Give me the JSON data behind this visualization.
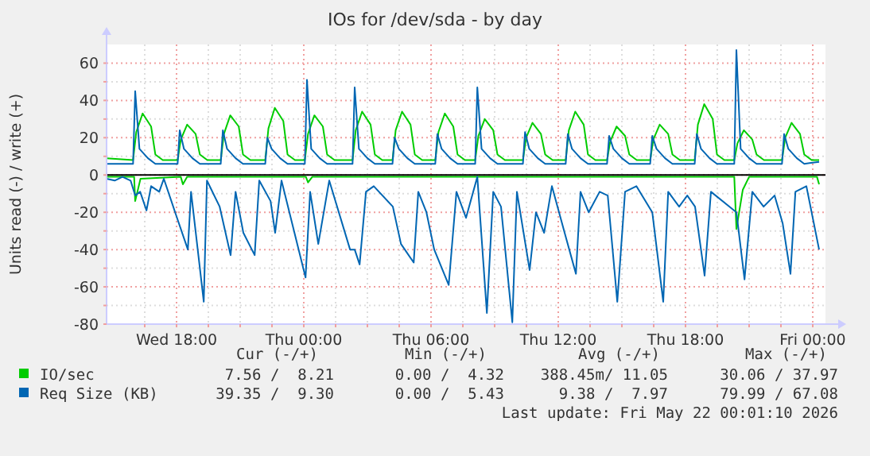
{
  "chart_data": {
    "type": "line",
    "title": "IOs for /dev/sda - by day",
    "ylabel": "Units read (-) / write (+)",
    "xlim": [
      "2026-05-20T14:42",
      "2026-05-22T00:36"
    ],
    "xticks": [
      {
        "value": "2026-05-20T16:30",
        "label": null
      },
      {
        "value": "2026-05-20T18:00",
        "label": "Wed 18:00"
      },
      {
        "value": "2026-05-20T19:30",
        "label": null
      },
      {
        "value": "2026-05-20T21:00",
        "label": null
      },
      {
        "value": "2026-05-20T22:30",
        "label": null
      },
      {
        "value": "2026-05-21T00:00",
        "label": "Thu 00:00"
      },
      {
        "value": "2026-05-21T01:30",
        "label": null
      },
      {
        "value": "2026-05-21T03:00",
        "label": null
      },
      {
        "value": "2026-05-21T04:30",
        "label": null
      },
      {
        "value": "2026-05-21T06:00",
        "label": "Thu 06:00"
      },
      {
        "value": "2026-05-21T07:30",
        "label": null
      },
      {
        "value": "2026-05-21T09:00",
        "label": null
      },
      {
        "value": "2026-05-21T10:30",
        "label": null
      },
      {
        "value": "2026-05-21T12:00",
        "label": "Thu 12:00"
      },
      {
        "value": "2026-05-21T13:30",
        "label": null
      },
      {
        "value": "2026-05-21T15:00",
        "label": null
      },
      {
        "value": "2026-05-21T16:30",
        "label": null
      },
      {
        "value": "2026-05-21T18:00",
        "label": "Thu 18:00"
      },
      {
        "value": "2026-05-21T19:30",
        "label": null
      },
      {
        "value": "2026-05-21T21:00",
        "label": null
      },
      {
        "value": "2026-05-21T22:30",
        "label": null
      },
      {
        "value": "2026-05-22T00:00",
        "label": "Fri 00:00"
      }
    ],
    "ylim": [
      -80,
      70
    ],
    "yticks": [
      -80,
      {
        "value": -70,
        "label": null
      },
      -60,
      {
        "value": -50,
        "label": null
      },
      -40,
      {
        "value": -30,
        "label": null
      },
      -20,
      {
        "value": -10,
        "label": null
      },
      0,
      {
        "value": 10,
        "label": null
      },
      20,
      {
        "value": 30,
        "label": null
      },
      40,
      {
        "value": 50,
        "label": null
      },
      60
    ],
    "grid": true,
    "legend": "bottom",
    "line_style": "solid",
    "marker": "none",
    "ref_lines": [
      {
        "axis": "y",
        "value": 0,
        "color": "#000000"
      }
    ],
    "series": [
      {
        "color": "#00cc00",
        "x": [
          "2026-05-20T14:42",
          "2026-05-20T16:00",
          "2026-05-20T16:03",
          "2026-05-20T16:18",
          "2026-05-20T18:12",
          "2026-05-20T18:18",
          "2026-05-20T18:30",
          "2026-05-21T00:06",
          "2026-05-21T00:12",
          "2026-05-21T00:24",
          "2026-05-21T20:18",
          "2026-05-21T20:24",
          "2026-05-21T20:42",
          "2026-05-21T21:00",
          "2026-05-22T00:12",
          "2026-05-22T00:18"
        ],
        "values": [
          -1,
          -1,
          -14,
          -2,
          -1,
          -5,
          -1,
          -1,
          -4,
          -1,
          -1,
          -29,
          -8,
          -1,
          -1,
          -5
        ]
      },
      {
        "color": "#0066b3",
        "x": [
          "2026-05-20T14:42",
          "2026-05-20T15:05",
          "2026-05-20T15:27",
          "2026-05-20T15:50",
          "2026-05-20T16:03",
          "2026-05-20T16:17",
          "2026-05-20T16:35",
          "2026-05-20T16:48",
          "2026-05-20T17:11",
          "2026-05-20T17:24",
          "2026-05-20T17:56",
          "2026-05-20T18:32",
          "2026-05-20T18:41",
          "2026-05-20T19:17",
          "2026-05-20T19:26",
          "2026-05-20T20:02",
          "2026-05-20T20:33",
          "2026-05-20T20:47",
          "2026-05-20T21:09",
          "2026-05-20T21:41",
          "2026-05-20T21:54",
          "2026-05-20T22:26",
          "2026-05-20T22:39",
          "2026-05-20T22:57",
          "2026-05-21T00:05",
          "2026-05-21T00:18",
          "2026-05-21T00:41",
          "2026-05-21T01:12",
          "2026-05-21T02:11",
          "2026-05-21T02:24",
          "2026-05-21T02:38",
          "2026-05-21T02:56",
          "2026-05-21T03:18",
          "2026-05-21T04:12",
          "2026-05-21T04:35",
          "2026-05-21T05:11",
          "2026-05-21T05:24",
          "2026-05-21T05:47",
          "2026-05-21T06:09",
          "2026-05-21T06:50",
          "2026-05-21T07:12",
          "2026-05-21T07:39",
          "2026-05-21T08:11",
          "2026-05-21T08:38",
          "2026-05-21T08:56",
          "2026-05-21T09:18",
          "2026-05-21T09:50",
          "2026-05-21T10:03",
          "2026-05-21T10:39",
          "2026-05-21T10:57",
          "2026-05-21T11:20",
          "2026-05-21T11:42",
          "2026-05-21T12:18",
          "2026-05-21T12:50",
          "2026-05-21T13:03",
          "2026-05-21T13:26",
          "2026-05-21T13:57",
          "2026-05-21T14:20",
          "2026-05-21T14:47",
          "2026-05-21T15:09",
          "2026-05-21T15:41",
          "2026-05-21T16:26",
          "2026-05-21T16:57",
          "2026-05-21T17:11",
          "2026-05-21T17:42",
          "2026-05-21T18:05",
          "2026-05-21T18:27",
          "2026-05-21T18:54",
          "2026-05-21T19:12",
          "2026-05-21T20:24",
          "2026-05-21T20:47",
          "2026-05-21T21:09",
          "2026-05-21T21:41",
          "2026-05-21T22:12",
          "2026-05-21T22:35",
          "2026-05-21T22:57",
          "2026-05-21T23:11",
          "2026-05-21T23:42",
          "2026-05-22T00:18"
        ],
        "values": [
          -2,
          -3,
          -1,
          -3,
          -11,
          -9,
          -19,
          -6,
          -9,
          -2,
          -20,
          -40,
          -9,
          -68,
          -3,
          -17,
          -43,
          -9,
          -31,
          -43,
          -3,
          -14,
          -31,
          -3,
          -55,
          -9,
          -37,
          -3,
          -40,
          -40,
          -48,
          -9,
          -6,
          -17,
          -37,
          -47,
          -9,
          -20,
          -40,
          -59,
          -9,
          -23,
          -1,
          -74,
          -9,
          -17,
          -79,
          -9,
          -51,
          -20,
          -31,
          -6,
          -31,
          -53,
          -9,
          -20,
          -9,
          -11,
          -68,
          -9,
          -6,
          -20,
          -68,
          -9,
          -17,
          -11,
          -17,
          -54,
          -9,
          -20,
          -56,
          -9,
          -17,
          -11,
          -26,
          -53,
          -9,
          -6,
          -40
        ]
      },
      {
        "name": "IO/sec",
        "color": "#00cc00",
        "x": [
          "2026-05-20T14:42",
          "2026-05-20T15:57",
          "2026-05-20T16:06",
          "2026-05-20T16:24",
          "2026-05-20T16:48",
          "2026-05-20T17:00",
          "2026-05-20T17:21",
          "2026-05-20T18:03",
          "2026-05-20T18:12",
          "2026-05-20T18:30",
          "2026-05-20T18:54",
          "2026-05-20T19:06",
          "2026-05-20T19:27",
          "2026-05-20T20:05",
          "2026-05-20T20:14",
          "2026-05-20T20:32",
          "2026-05-20T20:56",
          "2026-05-20T21:08",
          "2026-05-20T21:29",
          "2026-05-20T22:11",
          "2026-05-20T22:20",
          "2026-05-20T22:38",
          "2026-05-20T23:02",
          "2026-05-20T23:14",
          "2026-05-20T23:35",
          "2026-05-21T00:03",
          "2026-05-21T00:12",
          "2026-05-21T00:30",
          "2026-05-21T00:54",
          "2026-05-21T01:06",
          "2026-05-21T01:27",
          "2026-05-21T02:18",
          "2026-05-21T02:27",
          "2026-05-21T02:45",
          "2026-05-21T03:09",
          "2026-05-21T03:21",
          "2026-05-21T03:42",
          "2026-05-21T04:11",
          "2026-05-21T04:20",
          "2026-05-21T04:38",
          "2026-05-21T05:02",
          "2026-05-21T05:14",
          "2026-05-21T05:35",
          "2026-05-21T06:12",
          "2026-05-21T06:21",
          "2026-05-21T06:39",
          "2026-05-21T07:03",
          "2026-05-21T07:15",
          "2026-05-21T07:36",
          "2026-05-21T08:05",
          "2026-05-21T08:14",
          "2026-05-21T08:32",
          "2026-05-21T08:56",
          "2026-05-21T09:08",
          "2026-05-21T09:29",
          "2026-05-21T10:20",
          "2026-05-21T10:29",
          "2026-05-21T10:47",
          "2026-05-21T11:11",
          "2026-05-21T11:23",
          "2026-05-21T11:44",
          "2026-05-21T12:21",
          "2026-05-21T12:30",
          "2026-05-21T12:48",
          "2026-05-21T13:12",
          "2026-05-21T13:24",
          "2026-05-21T13:45",
          "2026-05-21T14:18",
          "2026-05-21T14:27",
          "2026-05-21T14:45",
          "2026-05-21T15:09",
          "2026-05-21T15:21",
          "2026-05-21T15:42",
          "2026-05-21T16:20",
          "2026-05-21T16:29",
          "2026-05-21T16:47",
          "2026-05-21T17:11",
          "2026-05-21T17:23",
          "2026-05-21T17:44",
          "2026-05-21T18:26",
          "2026-05-21T18:35",
          "2026-05-21T18:53",
          "2026-05-21T19:17",
          "2026-05-21T19:29",
          "2026-05-21T19:50",
          "2026-05-21T20:18",
          "2026-05-21T20:27",
          "2026-05-21T20:45",
          "2026-05-21T21:09",
          "2026-05-21T21:21",
          "2026-05-21T21:42",
          "2026-05-21T22:33",
          "2026-05-21T22:42",
          "2026-05-21T23:00",
          "2026-05-21T23:24",
          "2026-05-21T23:36",
          "2026-05-21T23:57",
          "2026-05-22T00:18"
        ],
        "values": [
          9,
          8,
          23,
          33,
          26,
          11,
          8,
          8,
          19,
          27,
          22,
          11,
          8,
          8,
          22,
          32,
          26,
          11,
          8,
          8,
          25,
          36,
          29,
          11,
          8,
          8,
          22,
          32,
          26,
          11,
          8,
          8,
          24,
          34,
          27,
          11,
          8,
          8,
          24,
          34,
          27,
          11,
          8,
          8,
          23,
          33,
          26,
          11,
          8,
          8,
          21,
          30,
          24,
          11,
          8,
          8,
          20,
          28,
          22,
          11,
          8,
          8,
          24,
          34,
          27,
          11,
          8,
          8,
          18,
          26,
          21,
          11,
          8,
          8,
          19,
          27,
          22,
          11,
          8,
          8,
          27,
          38,
          30,
          11,
          8,
          8,
          17,
          24,
          19,
          11,
          8,
          8,
          20,
          28,
          22,
          11,
          8,
          8
        ]
      },
      {
        "name": "Req Size (KB)",
        "color": "#0066b3",
        "x": [
          "2026-05-20T14:42",
          "2026-05-20T15:57",
          "2026-05-20T16:03",
          "2026-05-20T16:15",
          "2026-05-20T16:39",
          "2026-05-20T17:00",
          "2026-05-20T18:03",
          "2026-05-20T18:09",
          "2026-05-20T18:21",
          "2026-05-20T18:45",
          "2026-05-20T19:06",
          "2026-05-20T20:05",
          "2026-05-20T20:11",
          "2026-05-20T20:23",
          "2026-05-20T20:47",
          "2026-05-20T21:08",
          "2026-05-20T22:11",
          "2026-05-20T22:17",
          "2026-05-20T22:29",
          "2026-05-20T22:53",
          "2026-05-20T23:14",
          "2026-05-21T00:03",
          "2026-05-21T00:09",
          "2026-05-21T00:21",
          "2026-05-21T00:45",
          "2026-05-21T01:06",
          "2026-05-21T02:18",
          "2026-05-21T02:24",
          "2026-05-21T02:36",
          "2026-05-21T03:00",
          "2026-05-21T03:21",
          "2026-05-21T04:11",
          "2026-05-21T04:17",
          "2026-05-21T04:29",
          "2026-05-21T04:53",
          "2026-05-21T05:14",
          "2026-05-21T06:12",
          "2026-05-21T06:18",
          "2026-05-21T06:30",
          "2026-05-21T06:54",
          "2026-05-21T07:15",
          "2026-05-21T08:05",
          "2026-05-21T08:11",
          "2026-05-21T08:23",
          "2026-05-21T08:47",
          "2026-05-21T09:08",
          "2026-05-21T10:20",
          "2026-05-21T10:26",
          "2026-05-21T10:38",
          "2026-05-21T11:02",
          "2026-05-21T11:23",
          "2026-05-21T12:21",
          "2026-05-21T12:27",
          "2026-05-21T12:39",
          "2026-05-21T13:03",
          "2026-05-21T13:24",
          "2026-05-21T14:18",
          "2026-05-21T14:24",
          "2026-05-21T14:36",
          "2026-05-21T15:00",
          "2026-05-21T15:21",
          "2026-05-21T16:20",
          "2026-05-21T16:26",
          "2026-05-21T16:38",
          "2026-05-21T17:02",
          "2026-05-21T17:23",
          "2026-05-21T18:26",
          "2026-05-21T18:32",
          "2026-05-21T18:44",
          "2026-05-21T19:08",
          "2026-05-21T19:29",
          "2026-05-21T20:18",
          "2026-05-21T20:24",
          "2026-05-21T20:36",
          "2026-05-21T21:00",
          "2026-05-21T21:21",
          "2026-05-21T22:33",
          "2026-05-21T22:39",
          "2026-05-21T22:51",
          "2026-05-21T23:15",
          "2026-05-21T23:36",
          "2026-05-22T00:18"
        ],
        "values": [
          6,
          6,
          45,
          14,
          9,
          6,
          6,
          24,
          14,
          9,
          6,
          6,
          24,
          14,
          9,
          6,
          6,
          20,
          14,
          9,
          6,
          6,
          51,
          14,
          9,
          6,
          6,
          47,
          14,
          9,
          6,
          6,
          20,
          14,
          9,
          6,
          6,
          22,
          14,
          9,
          6,
          6,
          47,
          14,
          9,
          6,
          6,
          23,
          14,
          9,
          6,
          6,
          22,
          14,
          9,
          6,
          6,
          21,
          14,
          9,
          6,
          6,
          21,
          14,
          9,
          6,
          6,
          22,
          14,
          9,
          6,
          6,
          67,
          14,
          9,
          6,
          6,
          22,
          14,
          9,
          6,
          7
        ]
      }
    ],
    "annotations": [
      "Cur (-/+)",
      "Min (-/+)",
      "Avg (-/+)",
      "Max (-/+)",
      "7.56 /  8.21",
      "0.00 /  4.32",
      "388.45m/ 11.05",
      "30.06 / 37.97",
      "39.35 /  9.30",
      "0.00 /  5.43",
      "9.38 /  7.97",
      "79.99 / 67.08",
      "Last update: Fri May 22 00:01:10 2026"
    ]
  }
}
